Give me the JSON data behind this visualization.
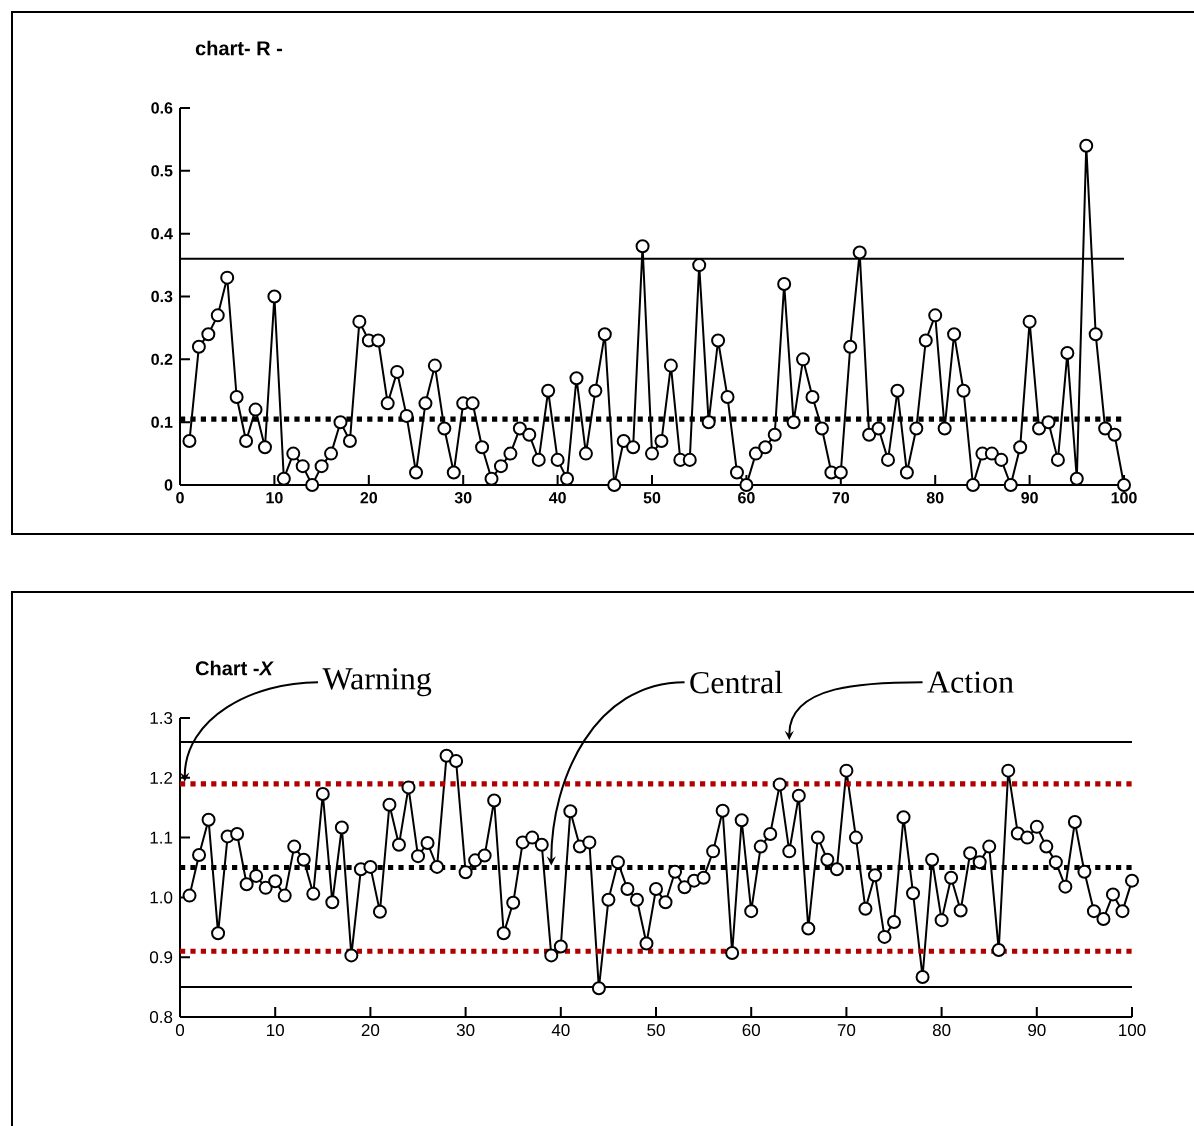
{
  "chart_data": [
    {
      "type": "line",
      "title": "chart- R -",
      "marker": "circle",
      "xlim": [
        0,
        100
      ],
      "ylim": [
        0,
        0.6
      ],
      "xticks": [
        0,
        10,
        20,
        30,
        40,
        50,
        60,
        70,
        80,
        90,
        100
      ],
      "yticks": [
        0,
        0.1,
        0.2,
        0.3,
        0.4,
        0.5,
        0.6
      ],
      "x": [
        1,
        2,
        3,
        4,
        5,
        6,
        7,
        8,
        9,
        10,
        11,
        12,
        13,
        14,
        15,
        16,
        17,
        18,
        19,
        20,
        21,
        22,
        23,
        24,
        25,
        26,
        27,
        28,
        29,
        30,
        31,
        32,
        33,
        34,
        35,
        36,
        37,
        38,
        39,
        40,
        41,
        42,
        43,
        44,
        45,
        46,
        47,
        48,
        49,
        50,
        51,
        52,
        53,
        54,
        55,
        56,
        57,
        58,
        59,
        60,
        61,
        62,
        63,
        64,
        65,
        66,
        67,
        68,
        69,
        70,
        71,
        72,
        73,
        74,
        75,
        76,
        77,
        78,
        79,
        80,
        81,
        82,
        83,
        84,
        85,
        86,
        87,
        88,
        89,
        90,
        91,
        92,
        93,
        94,
        95,
        96,
        97,
        98,
        99,
        100
      ],
      "series": [
        {
          "color": "#000000",
          "values": [
            0.07,
            0.22,
            0.24,
            0.27,
            0.33,
            0.14,
            0.07,
            0.12,
            0.06,
            0.3,
            0.01,
            0.05,
            0.03,
            0.0,
            0.03,
            0.05,
            0.1,
            0.07,
            0.26,
            0.23,
            0.23,
            0.13,
            0.18,
            0.11,
            0.02,
            0.13,
            0.19,
            0.09,
            0.02,
            0.13,
            0.13,
            0.06,
            0.01,
            0.03,
            0.05,
            0.09,
            0.08,
            0.04,
            0.15,
            0.04,
            0.01,
            0.17,
            0.05,
            0.15,
            0.24,
            0.0,
            0.07,
            0.06,
            0.38,
            0.05,
            0.07,
            0.19,
            0.04,
            0.04,
            0.35,
            0.1,
            0.23,
            0.14,
            0.02,
            0.0,
            0.05,
            0.06,
            0.08,
            0.32,
            0.1,
            0.2,
            0.14,
            0.09,
            0.02,
            0.02,
            0.22,
            0.37,
            0.08,
            0.09,
            0.04,
            0.15,
            0.02,
            0.09,
            0.23,
            0.27,
            0.09,
            0.24,
            0.15,
            0.0,
            0.05,
            0.05,
            0.04,
            0.0,
            0.06,
            0.26,
            0.09,
            0.1,
            0.04,
            0.21,
            0.01,
            0.54,
            0.24,
            0.09,
            0.08,
            0.0
          ]
        }
      ],
      "ref_lines": [
        {
          "axis": "y",
          "value": 0.36,
          "color": "#000000",
          "line_style": "solid"
        },
        {
          "axis": "y",
          "value": 0.105,
          "color": "#000000",
          "line_style": "dotted"
        }
      ]
    },
    {
      "type": "line",
      "title": "Chart -*X*",
      "marker": "circle",
      "xlim": [
        0,
        100
      ],
      "ylim": [
        0.8,
        1.3
      ],
      "xticks": [
        0,
        10,
        20,
        30,
        40,
        50,
        60,
        70,
        80,
        90,
        100
      ],
      "yticks": [
        {
          "value": 0.8,
          "label": "0.8"
        },
        {
          "value": 0.9,
          "label": "0.9"
        },
        {
          "value": 1.0,
          "label": "1.0"
        },
        {
          "value": 1.1,
          "label": "1.1"
        },
        {
          "value": 1.2,
          "label": "1.2"
        },
        {
          "value": 1.3,
          "label": "1.3"
        }
      ],
      "x": [
        1,
        2,
        3,
        4,
        5,
        6,
        7,
        8,
        9,
        10,
        11,
        12,
        13,
        14,
        15,
        16,
        17,
        18,
        19,
        20,
        21,
        22,
        23,
        24,
        25,
        26,
        27,
        28,
        29,
        30,
        31,
        32,
        33,
        34,
        35,
        36,
        37,
        38,
        39,
        40,
        41,
        42,
        43,
        44,
        45,
        46,
        47,
        48,
        49,
        50,
        51,
        52,
        53,
        54,
        55,
        56,
        57,
        58,
        59,
        60,
        61,
        62,
        63,
        64,
        65,
        66,
        67,
        68,
        69,
        70,
        71,
        72,
        73,
        74,
        75,
        76,
        77,
        78,
        79,
        80,
        81,
        82,
        83,
        84,
        85,
        86,
        87,
        88,
        89,
        90,
        91,
        92,
        93,
        94,
        95,
        96,
        97,
        98,
        99,
        100
      ],
      "series": [
        {
          "color": "#000000",
          "values": [
            1.003,
            1.071,
            1.13,
            0.94,
            1.102,
            1.106,
            1.022,
            1.036,
            1.016,
            1.027,
            1.003,
            1.085,
            1.063,
            1.006,
            1.173,
            0.992,
            1.117,
            0.903,
            1.047,
            1.051,
            0.976,
            1.155,
            1.088,
            1.184,
            1.069,
            1.091,
            1.051,
            1.237,
            1.228,
            1.042,
            1.062,
            1.07,
            1.162,
            0.94,
            0.991,
            1.092,
            1.1,
            1.088,
            0.903,
            0.918,
            1.144,
            1.085,
            1.092,
            0.848,
            0.996,
            1.059,
            1.014,
            0.996,
            0.923,
            1.014,
            0.992,
            1.043,
            1.017,
            1.028,
            1.033,
            1.077,
            1.145,
            0.907,
            1.129,
            0.977,
            1.085,
            1.106,
            1.189,
            1.077,
            1.17,
            0.948,
            1.1,
            1.063,
            1.047,
            1.212,
            1.1,
            0.981,
            1.037,
            0.934,
            0.959,
            1.134,
            1.007,
            0.867,
            1.063,
            0.962,
            1.033,
            0.978,
            1.074,
            1.059,
            1.085,
            0.912,
            1.212,
            1.107,
            1.1,
            1.118,
            1.085,
            1.059,
            1.018,
            1.126,
            1.043,
            0.977,
            0.964,
            1.005,
            0.977,
            1.028
          ]
        }
      ],
      "ref_lines": [
        {
          "axis": "y",
          "value": 1.26,
          "color": "#000000",
          "line_style": "solid"
        },
        {
          "axis": "y",
          "value": 1.19,
          "color": "#b00000",
          "line_style": "dotted"
        },
        {
          "axis": "y",
          "value": 1.05,
          "color": "#000000",
          "line_style": "dotted"
        },
        {
          "axis": "y",
          "value": 0.91,
          "color": "#b00000",
          "line_style": "dotted"
        },
        {
          "axis": "y",
          "value": 0.85,
          "color": "#000000",
          "line_style": "solid"
        }
      ],
      "annotations": [
        {
          "text": "Warning",
          "x": 0.5,
          "y": 1.19
        },
        {
          "text": "Central",
          "x": 39,
          "y": 1.05
        },
        {
          "text": "Action",
          "x": 64,
          "y": 1.26
        }
      ]
    }
  ]
}
